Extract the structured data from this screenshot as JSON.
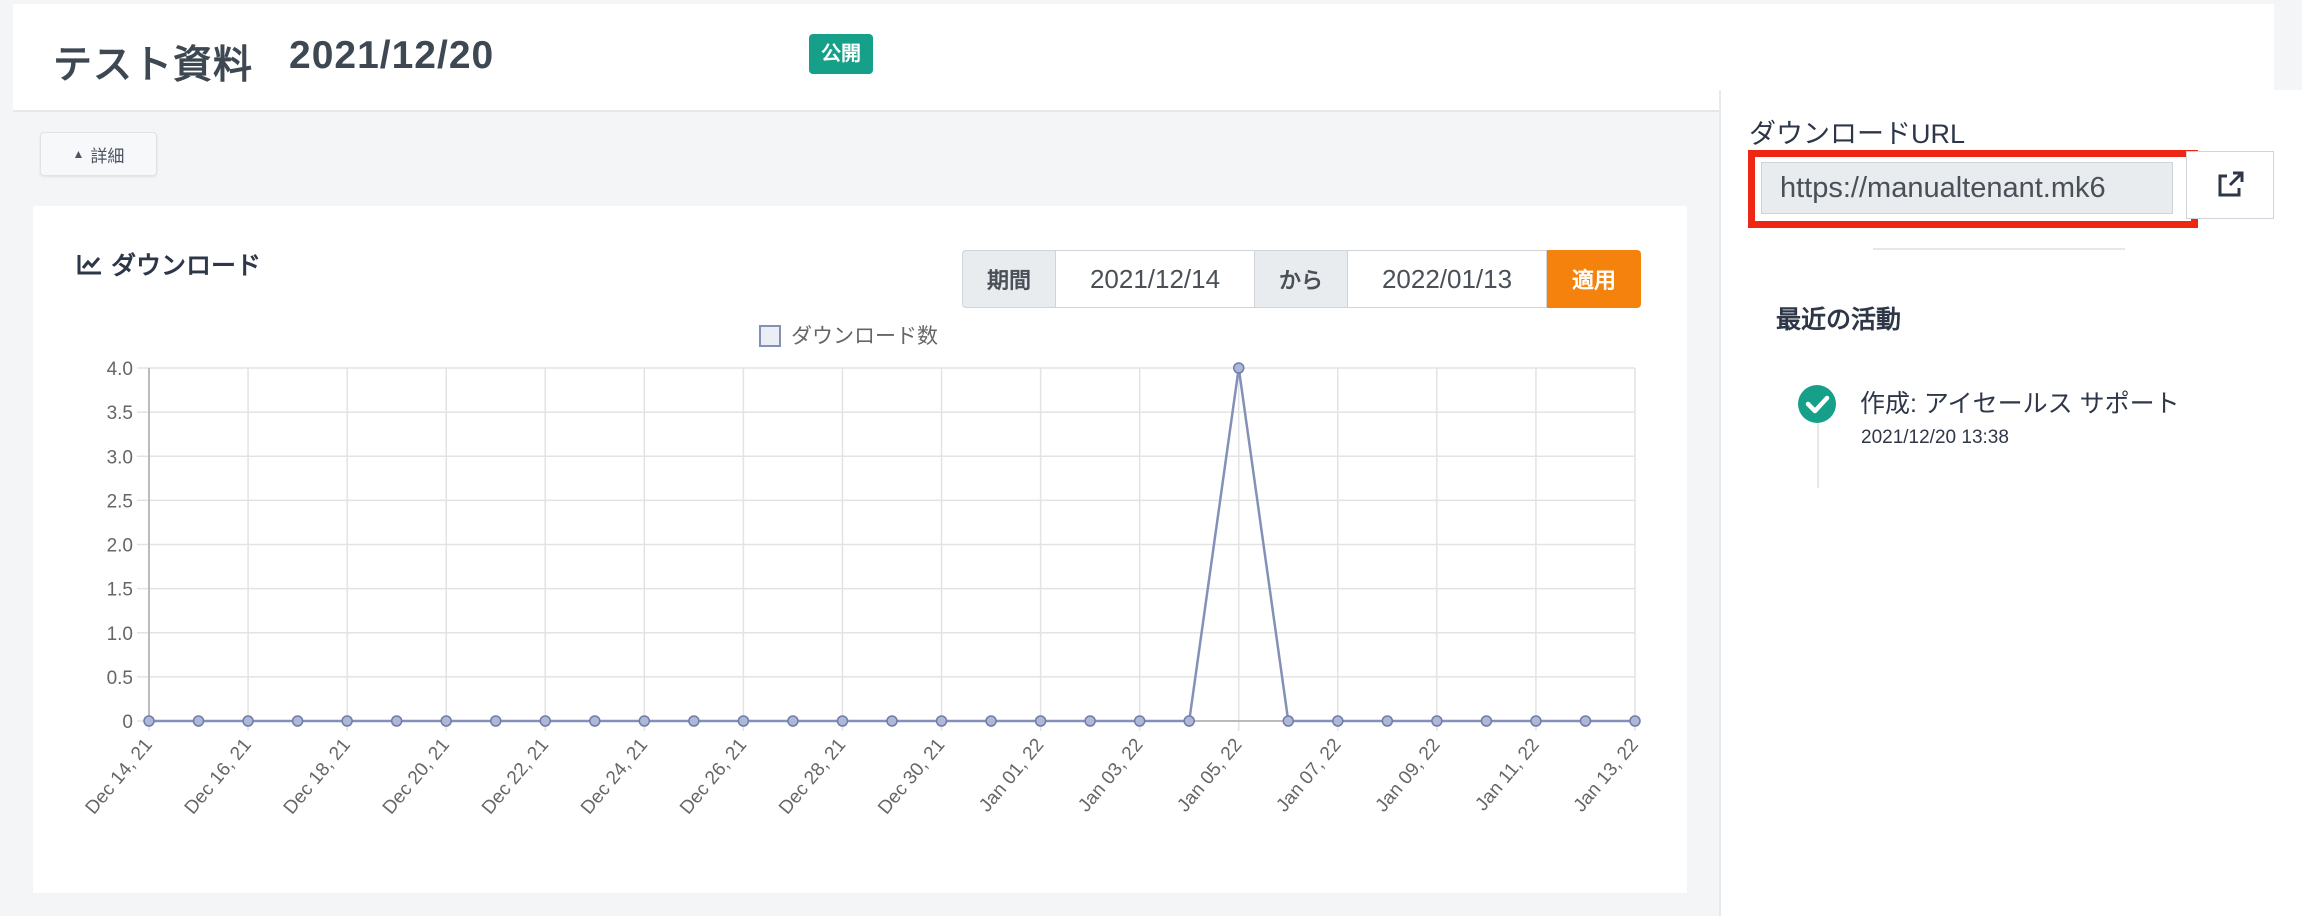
{
  "header": {
    "title_name": "テスト資料",
    "title_date": "2021/12/20",
    "badge": "公開"
  },
  "details_toggle": {
    "label": "詳細",
    "icon": "caret-up-icon"
  },
  "download_panel": {
    "title": "ダウンロード",
    "icon": "line-chart-icon",
    "period_label": "期間",
    "from_date": "2021/12/14",
    "from_label": "から",
    "to_date": "2022/01/13",
    "apply_label": "適用"
  },
  "sidebar": {
    "download_url_label": "ダウンロードURL",
    "download_url_value": "https://manualtenant.mk6",
    "open_link_icon": "external-link-icon",
    "activity_title": "最近の活動",
    "activities": [
      {
        "text": "作成: アイセールス サポート",
        "time": "2021/12/20 13:38",
        "icon": "check-circle-icon"
      }
    ]
  },
  "colors": {
    "badge": "#16a08a",
    "apply": "#f5820c",
    "highlight": "#ee2614",
    "series_line": "#8390b8",
    "check": "#16a08a"
  },
  "chart_data": {
    "type": "line",
    "legend": [
      "ダウンロード数"
    ],
    "legend_position": "top-center",
    "grid": true,
    "ylim": [
      0,
      4
    ],
    "yticks": [
      "0",
      "0.5",
      "1.0",
      "1.5",
      "2.0",
      "2.5",
      "3.0",
      "3.5",
      "4.0"
    ],
    "x_tick_labels": [
      "Dec 14, 21",
      "Dec 16, 21",
      "Dec 18, 21",
      "Dec 20, 21",
      "Dec 22, 21",
      "Dec 24, 21",
      "Dec 26, 21",
      "Dec 28, 21",
      "Dec 30, 21",
      "Jan 01, 22",
      "Jan 03, 22",
      "Jan 05, 22",
      "Jan 07, 22",
      "Jan 09, 22",
      "Jan 11, 22",
      "Jan 13, 22"
    ],
    "x": [
      "2021-12-14",
      "2021-12-15",
      "2021-12-16",
      "2021-12-17",
      "2021-12-18",
      "2021-12-19",
      "2021-12-20",
      "2021-12-21",
      "2021-12-22",
      "2021-12-23",
      "2021-12-24",
      "2021-12-25",
      "2021-12-26",
      "2021-12-27",
      "2021-12-28",
      "2021-12-29",
      "2021-12-30",
      "2021-12-31",
      "2022-01-01",
      "2022-01-02",
      "2022-01-03",
      "2022-01-04",
      "2022-01-05",
      "2022-01-06",
      "2022-01-07",
      "2022-01-08",
      "2022-01-09",
      "2022-01-10",
      "2022-01-11",
      "2022-01-12",
      "2022-01-13"
    ],
    "series": [
      {
        "name": "ダウンロード数",
        "values": [
          0,
          0,
          0,
          0,
          0,
          0,
          0,
          0,
          0,
          0,
          0,
          0,
          0,
          0,
          0,
          0,
          0,
          0,
          0,
          0,
          0,
          0,
          4,
          0,
          0,
          0,
          0,
          0,
          0,
          0,
          0
        ]
      }
    ]
  }
}
